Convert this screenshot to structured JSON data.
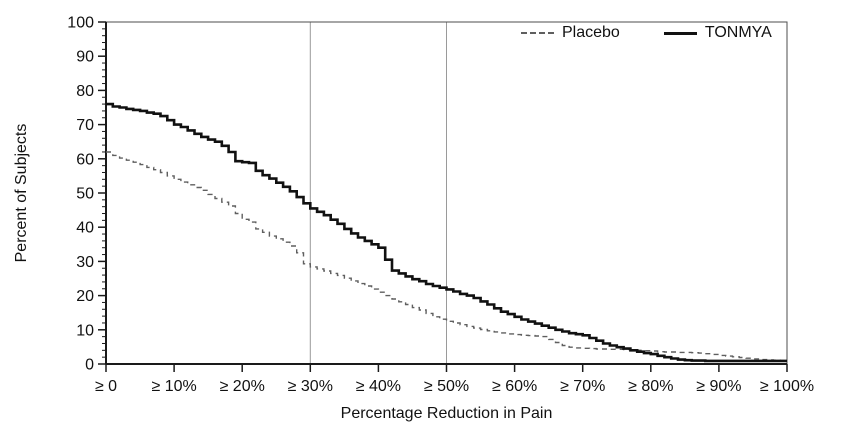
{
  "chart_data": {
    "type": "line",
    "step": true,
    "title": "",
    "xlabel": "Percentage Reduction in Pain",
    "ylabel": "Percent of Subjects",
    "xlim": [
      0,
      100
    ],
    "ylim": [
      0,
      100
    ],
    "grid": "off",
    "x_tick_values": [
      0,
      10,
      20,
      30,
      40,
      50,
      60,
      70,
      80,
      90,
      100
    ],
    "x_tick_labels": [
      "≥ 0",
      "≥ 10%",
      "≥ 20%",
      "≥ 30%",
      "≥ 40%",
      "≥ 50%",
      "≥ 60%",
      "≥ 70%",
      "≥ 80%",
      "≥ 90%",
      "≥ 100%"
    ],
    "y_tick_values": [
      0,
      10,
      20,
      30,
      40,
      50,
      60,
      70,
      80,
      90,
      100
    ],
    "y_minor_tick_step": 2,
    "reference_lines_x": [
      30,
      50
    ],
    "reference_line_color": "#9a9a9a",
    "axis_color": "#1a1a1a",
    "plot_border_color": "#4d4d4d",
    "legend": {
      "position": "top-right-inside",
      "entries": [
        {
          "name": "Placebo",
          "line_style": "dashed",
          "color": "#5f5f5f",
          "width": 1.4
        },
        {
          "name": "TONMYA",
          "line_style": "solid",
          "color": "#111111",
          "width": 2.6
        }
      ]
    },
    "x": [
      0,
      1,
      2,
      3,
      4,
      5,
      6,
      7,
      8,
      9,
      10,
      11,
      12,
      13,
      14,
      15,
      16,
      17,
      18,
      19,
      20,
      21,
      22,
      23,
      24,
      25,
      26,
      27,
      28,
      29,
      30,
      31,
      32,
      33,
      34,
      35,
      36,
      37,
      38,
      39,
      40,
      41,
      42,
      43,
      44,
      45,
      46,
      47,
      48,
      49,
      50,
      51,
      52,
      53,
      54,
      55,
      56,
      57,
      58,
      59,
      60,
      61,
      62,
      63,
      64,
      65,
      66,
      67,
      68,
      69,
      70,
      71,
      72,
      73,
      74,
      75,
      76,
      77,
      78,
      79,
      80,
      81,
      82,
      83,
      84,
      85,
      86,
      87,
      88,
      89,
      90,
      91,
      92,
      93,
      94,
      95,
      96,
      97,
      98,
      99,
      100
    ],
    "series": [
      {
        "name": "Placebo",
        "values": [
          62.0,
          61.0,
          60.2,
          59.6,
          59.0,
          58.3,
          57.5,
          56.8,
          56.0,
          55.0,
          54.0,
          53.2,
          52.4,
          51.6,
          50.8,
          49.6,
          48.4,
          47.3,
          46.2,
          44.0,
          42.3,
          41.5,
          39.5,
          38.5,
          37.4,
          36.6,
          35.6,
          34.5,
          32.5,
          29.3,
          28.4,
          27.8,
          27.2,
          26.5,
          25.9,
          25.1,
          24.3,
          23.5,
          22.8,
          21.9,
          21.0,
          20.0,
          19.0,
          18.2,
          17.4,
          16.5,
          15.8,
          14.8,
          13.8,
          13.1,
          12.5,
          12.0,
          11.5,
          11.0,
          10.5,
          10.1,
          9.7,
          9.4,
          9.1,
          8.8,
          8.6,
          8.4,
          8.3,
          8.2,
          8.0,
          7.2,
          6.3,
          5.4,
          4.9,
          4.7,
          4.6,
          4.5,
          4.4,
          4.4,
          4.3,
          4.3,
          4.2,
          4.1,
          4.0,
          3.9,
          3.8,
          3.6,
          3.5,
          3.5,
          3.4,
          3.4,
          3.3,
          3.2,
          3.0,
          2.8,
          2.5,
          2.3,
          2.1,
          1.9,
          1.7,
          1.5,
          1.3,
          1.2,
          1.1,
          1.0,
          0.9
        ]
      },
      {
        "name": "TONMYA",
        "values": [
          76.0,
          75.3,
          75.0,
          74.6,
          74.3,
          74.0,
          73.5,
          73.2,
          72.5,
          71.3,
          70.0,
          69.3,
          68.3,
          67.3,
          66.4,
          65.6,
          65.0,
          63.8,
          62.0,
          59.3,
          59.0,
          58.8,
          56.5,
          55.2,
          54.2,
          53.0,
          51.8,
          50.5,
          48.8,
          47.0,
          45.5,
          44.5,
          43.5,
          42.2,
          41.0,
          39.5,
          38.2,
          37.0,
          36.0,
          35.0,
          34.0,
          30.5,
          27.3,
          26.5,
          25.6,
          24.8,
          24.2,
          23.4,
          22.8,
          22.3,
          21.8,
          21.2,
          20.5,
          20.0,
          19.3,
          18.3,
          17.4,
          16.3,
          15.3,
          14.6,
          13.8,
          13.0,
          12.4,
          11.8,
          11.2,
          10.6,
          10.0,
          9.5,
          9.0,
          8.7,
          8.4,
          7.6,
          6.8,
          6.0,
          5.4,
          4.9,
          4.5,
          4.0,
          3.6,
          3.2,
          2.9,
          2.4,
          2.0,
          1.6,
          1.3,
          1.1,
          1.0,
          1.0,
          0.9,
          0.9,
          0.9,
          0.9,
          0.9,
          0.9,
          0.9,
          0.9,
          0.9,
          0.9,
          0.9,
          0.9,
          0.9
        ]
      }
    ]
  }
}
